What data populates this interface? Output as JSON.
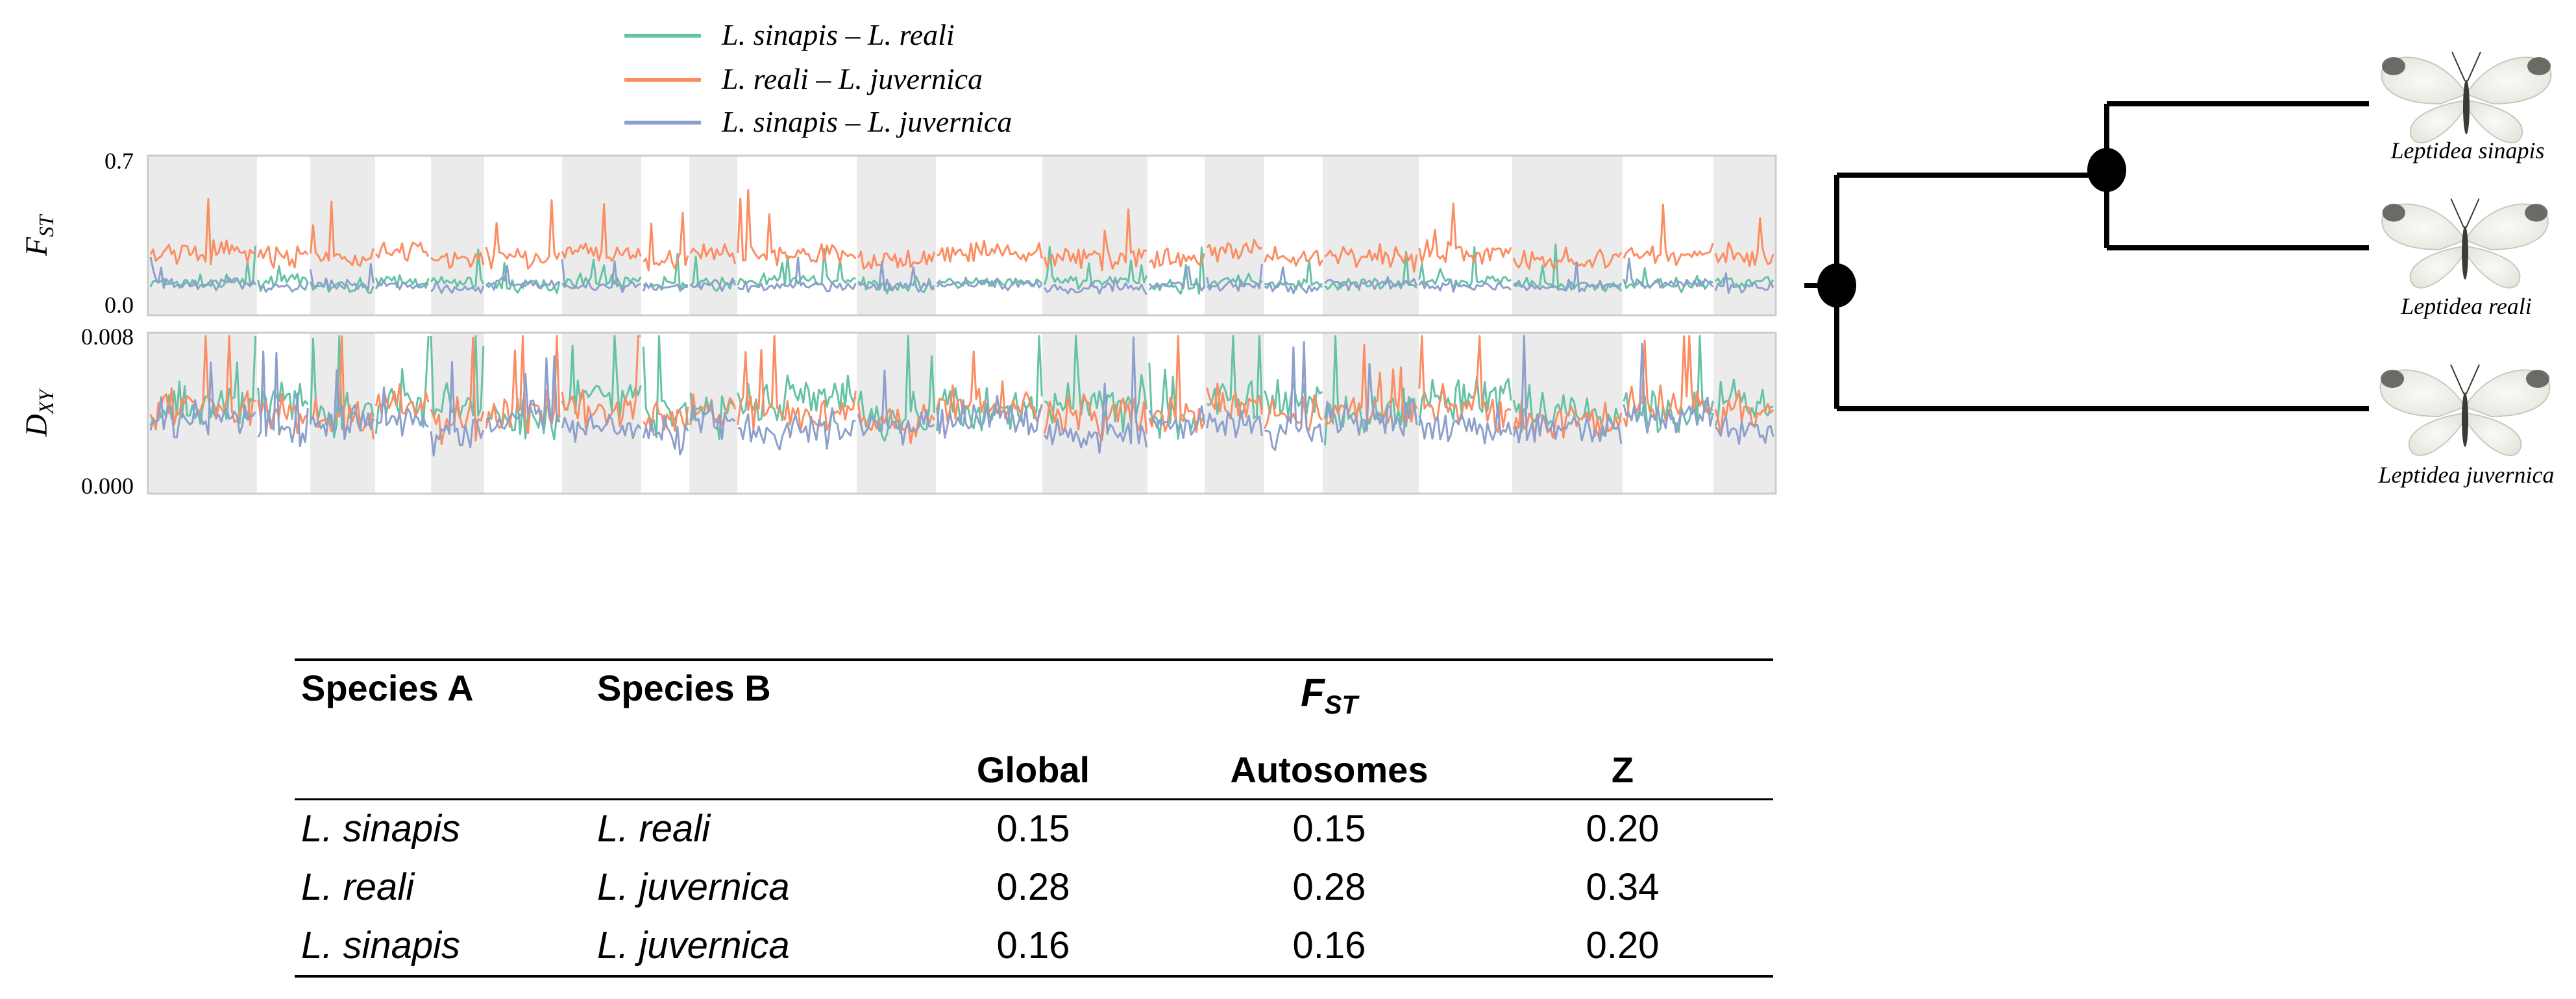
{
  "colors": {
    "pair1": "#66c2a5",
    "pair2": "#fc8d62",
    "pair3": "#8da0cb",
    "chrom_band": "#ebebeb",
    "panel_border": "#cccccc",
    "tree": "#000000"
  },
  "legend": {
    "entries": [
      {
        "name": "L. sinapis – L. reali",
        "color": "#66c2a5"
      },
      {
        "name": "L. reali – L. juvernica",
        "color": "#fc8d62"
      },
      {
        "name": "L. sinapis – L. juvernica",
        "color": "#8da0cb"
      }
    ]
  },
  "chart_data": [
    {
      "type": "line",
      "panel": "fst",
      "ylabel_main": "F",
      "ylabel_sub": "ST",
      "ylim": [
        0.0,
        0.7
      ],
      "yticks": [
        "0.7",
        "0.0"
      ],
      "grid": false,
      "legend_position": "top",
      "chromosome_bands": 16,
      "series": [
        {
          "name": "L. sinapis – L. reali",
          "baseline": 0.14,
          "noise": 0.03
        },
        {
          "name": "L. reali – L. juvernica",
          "baseline": 0.26,
          "noise": 0.05
        },
        {
          "name": "L. sinapis – L. juvernica",
          "baseline": 0.13,
          "noise": 0.025
        }
      ]
    },
    {
      "type": "line",
      "panel": "dxy",
      "ylabel_main": "D",
      "ylabel_sub": "XY",
      "ylim": [
        0.0,
        0.008
      ],
      "yticks": [
        "0.008",
        "0.000"
      ],
      "grid": false,
      "chromosome_bands": 16,
      "series": [
        {
          "name": "L. sinapis – L. reali",
          "baseline": 0.0043,
          "noise": 0.0012
        },
        {
          "name": "L. reali – L. juvernica",
          "baseline": 0.004,
          "noise": 0.001
        },
        {
          "name": "L. sinapis – L. juvernica",
          "baseline": 0.0034,
          "noise": 0.0009
        }
      ]
    },
    {
      "type": "table",
      "columns": [
        "Species A",
        "Species B",
        "Global",
        "Autosomes",
        "Z"
      ],
      "group_header": {
        "main": "F",
        "sub": "ST"
      },
      "rows": [
        [
          "L. sinapis",
          "L. reali",
          "0.15",
          "0.15",
          "0.20"
        ],
        [
          "L. reali",
          "L. juvernica",
          "0.28",
          "0.28",
          "0.34"
        ],
        [
          "L. sinapis",
          "L. juvernica",
          "0.16",
          "0.16",
          "0.20"
        ]
      ]
    }
  ],
  "tree": {
    "leaves": [
      "Leptidea sinapis",
      "Leptidea reali",
      "Leptidea juvernica"
    ]
  }
}
